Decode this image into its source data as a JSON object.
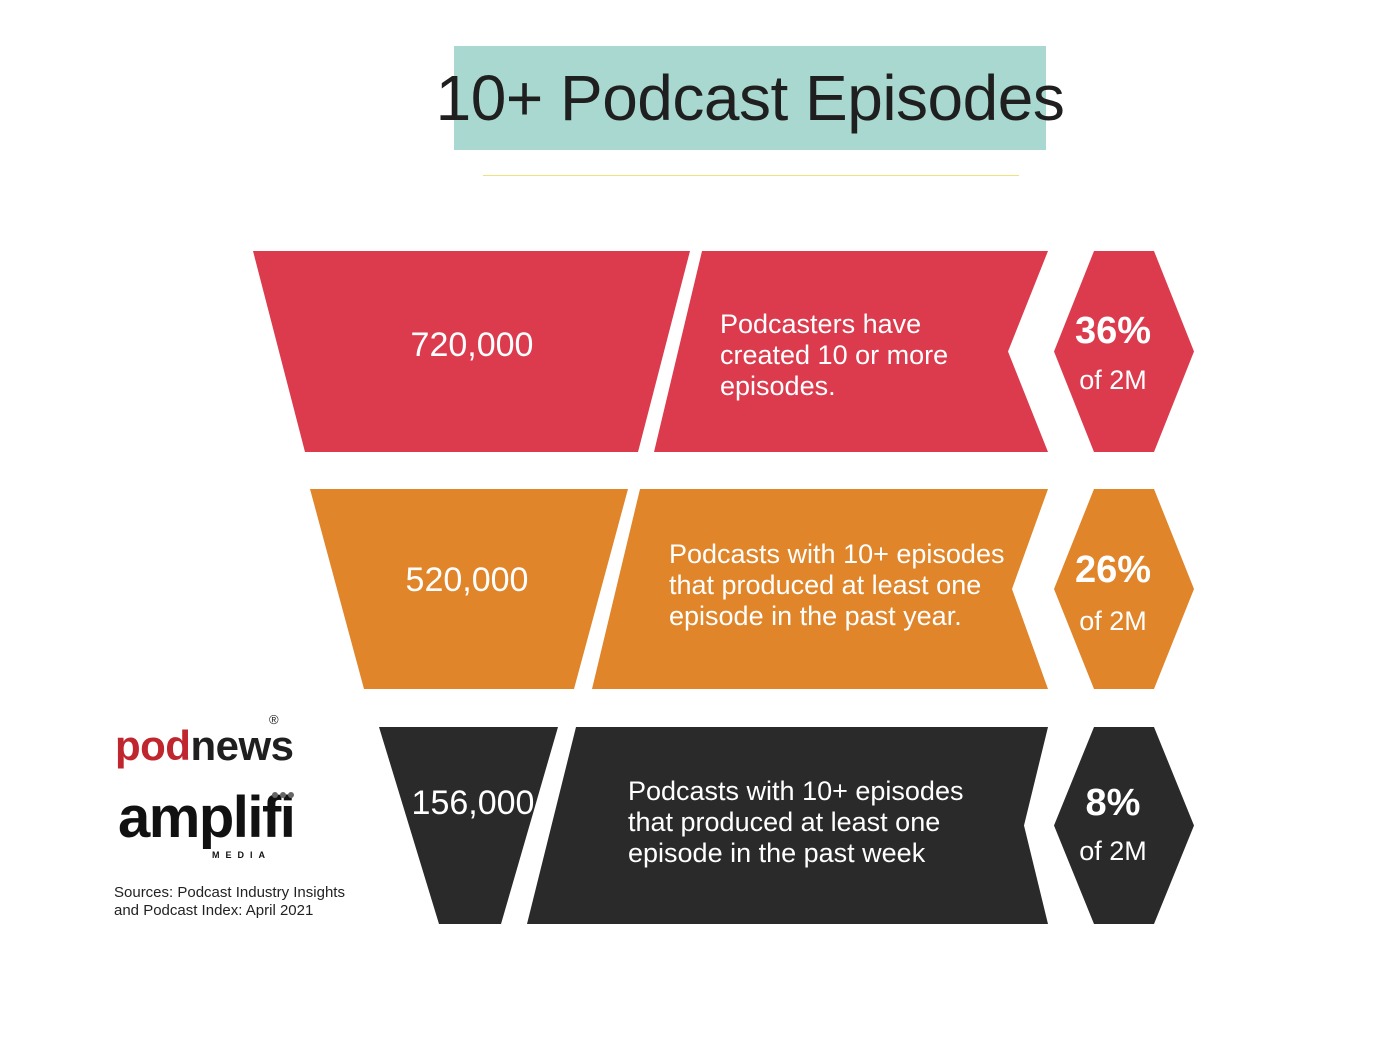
{
  "title": "10+ Podcast Episodes",
  "colors": {
    "title_bg": "#a9d8d0",
    "rule": "#f1e27a",
    "row1": "#dc3b4e",
    "row2": "#e0852a",
    "row3": "#2a2a2a",
    "text": "#ffffff"
  },
  "chart_data": {
    "type": "funnel",
    "title": "10+ Podcast Episodes",
    "total_label": "2M",
    "rows": [
      {
        "value": 720000,
        "value_label": "720,000",
        "description": [
          "Podcasters have",
          "created 10 or more",
          "episodes."
        ],
        "percent": 36,
        "percent_label": "36%",
        "of_label": "of 2M"
      },
      {
        "value": 520000,
        "value_label": "520,000",
        "description": [
          "Podcasts with 10+ episodes",
          "that produced at least one",
          "episode in the past year."
        ],
        "percent": 26,
        "percent_label": "26%",
        "of_label": "of 2M"
      },
      {
        "value": 156000,
        "value_label": "156,000",
        "description": [
          "Podcasts with 10+ episodes",
          "that produced at least one",
          "episode in the past week"
        ],
        "percent": 8,
        "percent_label": "8%",
        "of_label": "of 2M"
      }
    ]
  },
  "logos": {
    "podnews": {
      "part1": "pod",
      "part2": "news",
      "registered": "®"
    },
    "amplifi": {
      "name": "amplifi",
      "sub": "MEDIA"
    }
  },
  "sources": [
    "Sources: Podcast Industry Insights",
    "and Podcast Index: April 2021"
  ]
}
